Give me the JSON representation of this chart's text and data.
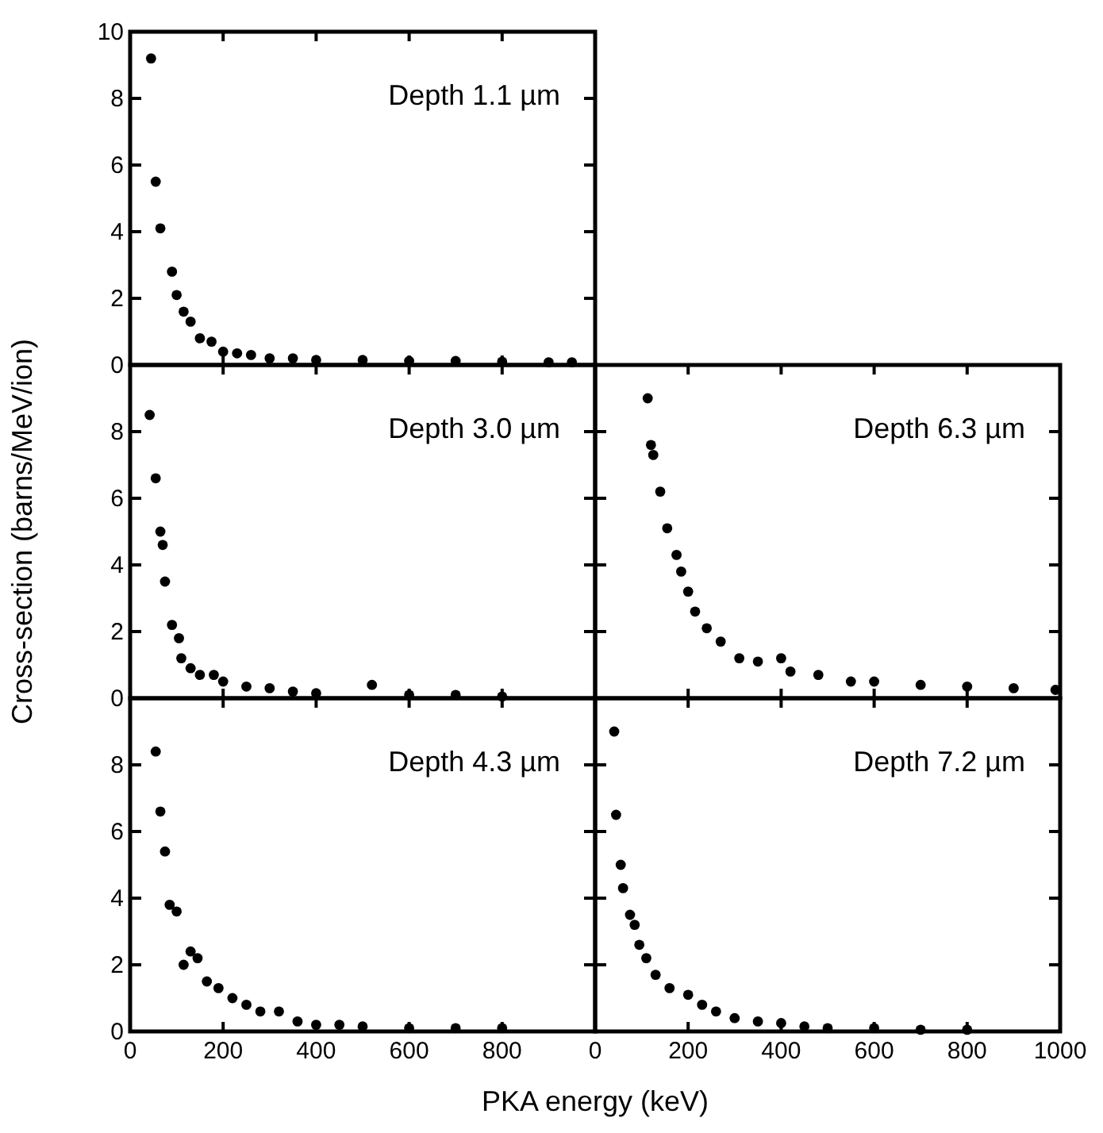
{
  "chart_data": [
    {
      "type": "scatter",
      "title": "Depth 1.1 µm",
      "xlim": [
        0,
        1000
      ],
      "ylim": [
        0,
        10
      ],
      "xticks": [
        0,
        200,
        400,
        600,
        800,
        1000
      ],
      "yticks": [
        0,
        2,
        4,
        6,
        8,
        10
      ],
      "tick_labels": "y",
      "marker": "circle",
      "grid": false,
      "series": [
        {
          "color": "#000000",
          "x": [
            45,
            55,
            65,
            90,
            100,
            115,
            130,
            150,
            175,
            200,
            230,
            260,
            300,
            350,
            400,
            500,
            600,
            700,
            800,
            900,
            950
          ],
          "values": [
            9.2,
            5.5,
            4.1,
            2.8,
            2.1,
            1.6,
            1.3,
            0.8,
            0.7,
            0.4,
            0.35,
            0.3,
            0.2,
            0.2,
            0.15,
            0.15,
            0.12,
            0.12,
            0.1,
            0.08,
            0.08
          ]
        }
      ]
    },
    {
      "type": "scatter",
      "title": "Depth 3.0 µm",
      "ylabel": "Cross-section (barns/MeV/ion)",
      "xlim": [
        0,
        1000
      ],
      "ylim": [
        0,
        10
      ],
      "xticks": [
        0,
        200,
        400,
        600,
        800,
        1000
      ],
      "yticks": [
        0,
        2,
        4,
        6,
        8,
        {
          "value": 10,
          "label": null
        }
      ],
      "tick_labels": "y",
      "marker": "circle",
      "grid": false,
      "series": [
        {
          "color": "#000000",
          "x": [
            42,
            55,
            65,
            70,
            75,
            90,
            105,
            110,
            130,
            150,
            180,
            200,
            250,
            300,
            350,
            400,
            520,
            600,
            700,
            800
          ],
          "values": [
            8.5,
            6.6,
            5.0,
            4.6,
            3.5,
            2.2,
            1.8,
            1.2,
            0.9,
            0.7,
            0.7,
            0.5,
            0.35,
            0.3,
            0.2,
            0.15,
            0.4,
            0.1,
            0.1,
            0.05
          ]
        }
      ]
    },
    {
      "type": "scatter",
      "title": "Depth 6.3 µm",
      "xlim": [
        0,
        1000
      ],
      "ylim": [
        0,
        10
      ],
      "xticks": [
        0,
        200,
        400,
        600,
        800,
        1000
      ],
      "yticks": [
        0,
        2,
        4,
        6,
        8,
        10
      ],
      "tick_labels": false,
      "marker": "circle",
      "grid": false,
      "series": [
        {
          "color": "#000000",
          "x": [
            113,
            120,
            125,
            140,
            155,
            175,
            185,
            200,
            215,
            240,
            270,
            310,
            350,
            400,
            420,
            480,
            550,
            600,
            700,
            800,
            900,
            990
          ],
          "values": [
            9.0,
            7.6,
            7.3,
            6.2,
            5.1,
            4.3,
            3.8,
            3.2,
            2.6,
            2.1,
            1.7,
            1.2,
            1.1,
            1.2,
            0.8,
            0.7,
            0.5,
            0.5,
            0.4,
            0.35,
            0.3,
            0.25
          ]
        }
      ]
    },
    {
      "type": "scatter",
      "title": "Depth 4.3 µm",
      "xlabel": "PKA energy (keV)",
      "xlim": [
        0,
        1000
      ],
      "ylim": [
        0,
        10
      ],
      "xticks": [
        0,
        200,
        400,
        600,
        800,
        {
          "value": 1000,
          "label": null
        }
      ],
      "yticks": [
        0,
        2,
        4,
        6,
        8,
        {
          "value": 10,
          "label": null
        }
      ],
      "marker": "circle",
      "grid": false,
      "series": [
        {
          "color": "#000000",
          "x": [
            55,
            65,
            75,
            85,
            100,
            115,
            130,
            145,
            165,
            190,
            220,
            250,
            280,
            320,
            360,
            400,
            450,
            500,
            600,
            700,
            800
          ],
          "values": [
            8.4,
            6.6,
            5.4,
            3.8,
            3.6,
            2.0,
            2.4,
            2.2,
            1.5,
            1.3,
            1.0,
            0.8,
            0.6,
            0.6,
            0.3,
            0.2,
            0.2,
            0.15,
            0.1,
            0.1,
            0.1
          ]
        }
      ]
    },
    {
      "type": "scatter",
      "title": "Depth 7.2 µm",
      "xlim": [
        0,
        1000
      ],
      "ylim": [
        0,
        10
      ],
      "xticks": [
        0,
        200,
        400,
        600,
        800,
        1000
      ],
      "yticks": [
        0,
        2,
        4,
        6,
        8,
        10
      ],
      "tick_labels": "x",
      "marker": "circle",
      "grid": false,
      "series": [
        {
          "color": "#000000",
          "x": [
            41,
            45,
            55,
            60,
            75,
            85,
            95,
            110,
            130,
            160,
            200,
            230,
            260,
            300,
            350,
            400,
            450,
            500,
            600,
            700,
            800
          ],
          "values": [
            9.0,
            6.5,
            5.0,
            4.3,
            3.5,
            3.2,
            2.6,
            2.2,
            1.7,
            1.3,
            1.1,
            0.8,
            0.6,
            0.4,
            0.3,
            0.25,
            0.15,
            0.1,
            0.1,
            0.05,
            0.05
          ]
        }
      ]
    }
  ]
}
